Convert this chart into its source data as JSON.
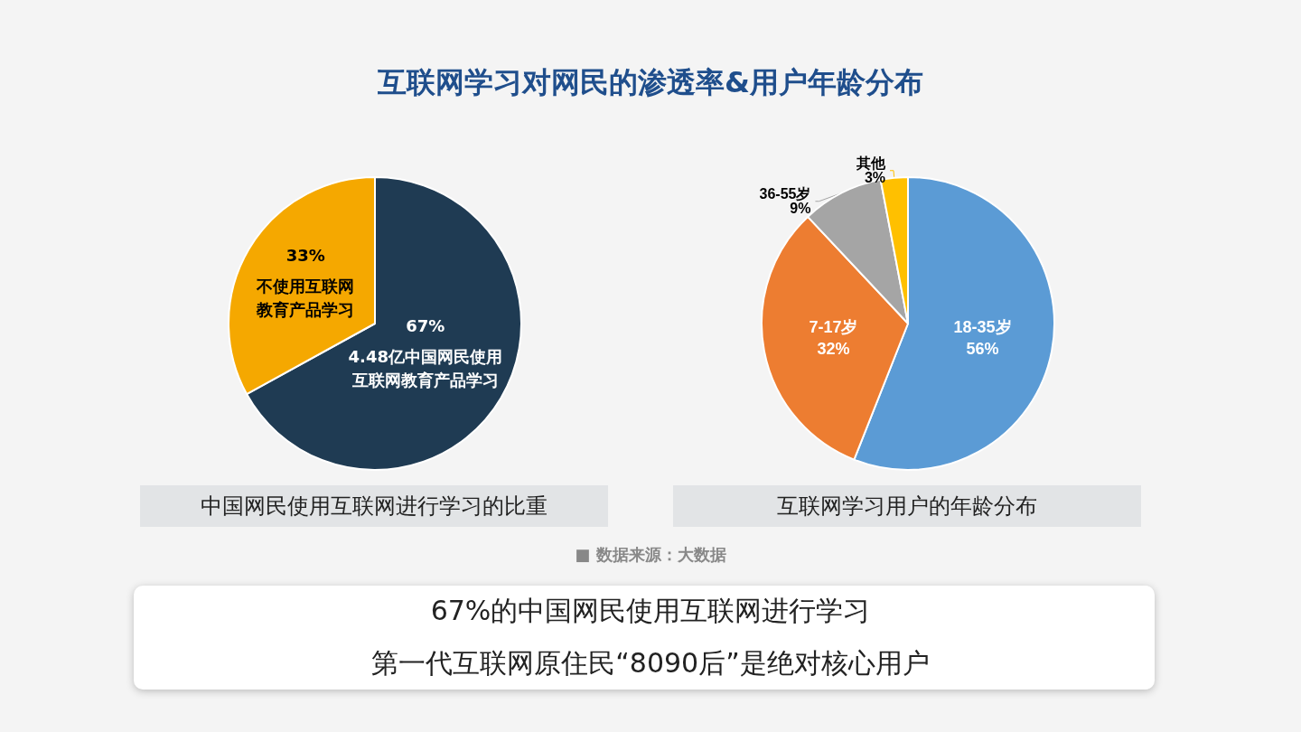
{
  "chart_data": [
    {
      "type": "pie",
      "title": "互联网学习对网民的渗透率&用户年龄分布",
      "categories": [
        "4.48亿中国网民使用互联网教育产品学习",
        "不使用互联网教育产品学习"
      ],
      "values": [
        67,
        33
      ],
      "value_labels": [
        "67%",
        "33%"
      ],
      "colors": [
        "#1f3b53",
        "#f5a800"
      ],
      "annotations": [
        "中国网民使用互联网进行学习的比重",
        "■  数据来源：大数据",
        "67%的中国网民使用互联网进行学习",
        "第一代互联网原住民“8090后”是绝对核心用户"
      ]
    },
    {
      "type": "pie",
      "categories": [
        "18-35岁",
        "7-17岁",
        "36-55岁",
        "其他"
      ],
      "values": [
        56,
        32,
        9,
        3
      ],
      "value_labels": [
        "56%",
        "32%",
        "9%",
        "3%"
      ],
      "colors": [
        "#5b9bd5",
        "#ed7d31",
        "#a5a5a5",
        "#ffc000"
      ],
      "annotations": [
        "互联网学习用户的年龄分布"
      ]
    }
  ]
}
